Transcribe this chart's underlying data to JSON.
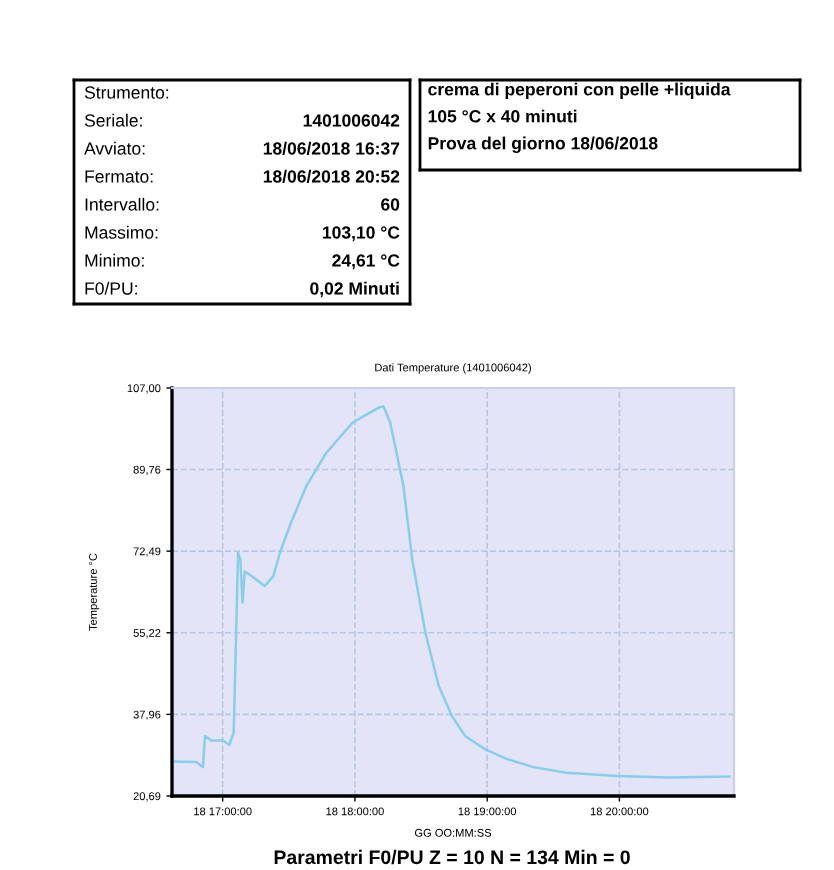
{
  "chart_data": [
    {
      "type": "other",
      "annotations": [
        "Strumento:",
        "Seriale:",
        "Avviato:",
        "Fermato:",
        "Intervallo:",
        "Massimo:",
        "Minimo:",
        "F0/PU:"
      ],
      "cell_labels": [
        [
          null
        ],
        [
          "1401006042"
        ],
        [
          "18/06/2018 16:37"
        ],
        [
          "18/06/2018 20:52"
        ],
        [
          "60"
        ],
        [
          "103,10 °C"
        ],
        [
          "24,61 °C"
        ],
        [
          "0,02 Minuti"
        ]
      ]
    },
    {
      "type": "other",
      "annotations": [
        "crema di peperoni con pelle +liquida",
        "105 °C x 40 minuti",
        "Prova del giorno 18/06/2018"
      ]
    },
    {
      "type": "line",
      "title": "Dati Temperature (1401006042)",
      "xlabel": "GG OO:MM:SS",
      "ylabel": "Temperature °C",
      "annotations": [
        "Parametri F0/PU Z = 10 N = 134 Min = 0"
      ],
      "series": [
        {
          "color": "#87ceeb",
          "x": [
            "2018-06-18T16:37",
            "2018-06-18T16:48",
            "2018-06-18T16:51",
            "2018-06-18T16:52",
            "2018-06-18T16:55",
            "2018-06-18T17:00",
            "2018-06-18T17:03",
            "2018-06-18T17:05",
            "2018-06-18T17:07",
            "2018-06-18T17:08",
            "2018-06-18T17:09",
            "2018-06-18T17:10",
            "2018-06-18T17:14",
            "2018-06-18T17:19",
            "2018-06-18T17:23",
            "2018-06-18T17:26",
            "2018-06-18T17:31",
            "2018-06-18T17:38",
            "2018-06-18T17:47",
            "2018-06-18T17:59",
            "2018-06-18T18:11",
            "2018-06-18T18:13",
            "2018-06-18T18:16",
            "2018-06-18T18:22",
            "2018-06-18T18:26",
            "2018-06-18T18:32",
            "2018-06-18T18:38",
            "2018-06-18T18:44",
            "2018-06-18T18:50",
            "2018-06-18T18:59",
            "2018-06-18T19:09",
            "2018-06-18T19:21",
            "2018-06-18T19:36",
            "2018-06-18T19:59",
            "2018-06-18T20:22",
            "2018-06-18T20:50"
          ],
          "values": [
            28.0,
            27.9,
            26.8,
            33.4,
            32.4,
            32.5,
            31.5,
            34.1,
            72.2,
            70.7,
            61.6,
            68.2,
            66.9,
            65.1,
            67.2,
            72.2,
            78.5,
            86.3,
            93.3,
            99.7,
            102.9,
            103.1,
            99.7,
            86.3,
            70.7,
            55.2,
            44.0,
            37.6,
            33.4,
            30.6,
            28.5,
            26.8,
            25.6,
            24.9,
            24.6,
            24.8
          ]
        }
      ],
      "xlim": [
        "2018-06-18T16:37",
        "2018-06-18T20:52"
      ],
      "xticks": [
        {
          "value": "2018-06-18T17:00",
          "label": "18 17:00:00"
        },
        {
          "value": "2018-06-18T18:00",
          "label": "18 18:00:00"
        },
        {
          "value": "2018-06-18T19:00",
          "label": "18 19:00:00"
        },
        {
          "value": "2018-06-18T20:00",
          "label": "18 20:00:00"
        }
      ],
      "ylim": [
        20.69,
        107.0
      ],
      "yticks": [
        {
          "value": 20.69,
          "label": "20,69"
        },
        {
          "value": 37.96,
          "label": "37,96"
        },
        {
          "value": 55.22,
          "label": "55,22"
        },
        {
          "value": 72.49,
          "label": "72,49"
        },
        {
          "value": 89.76,
          "label": "89,76"
        },
        {
          "value": 107.0,
          "label": "107,00"
        }
      ],
      "grid": true,
      "line_style": "solid",
      "marker": "none"
    }
  ]
}
